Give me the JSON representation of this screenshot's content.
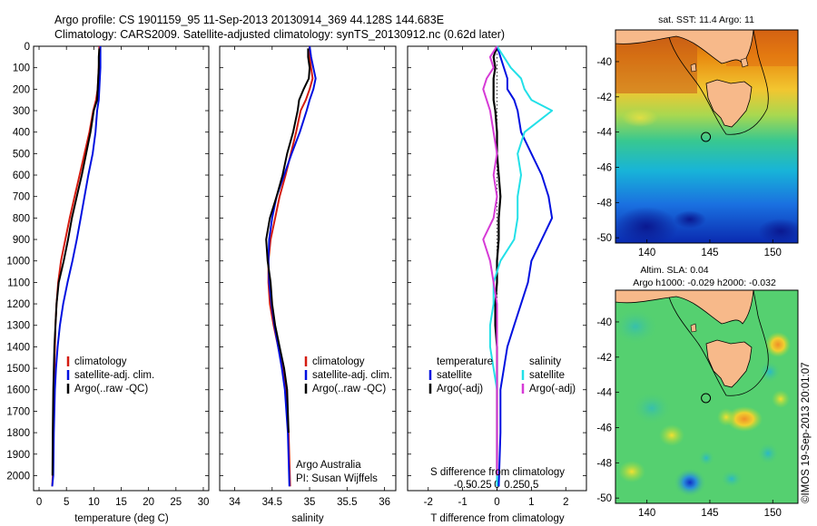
{
  "header": {
    "line1": "Argo profile: CS 1901159_95 11-Sep-2013 20130914_369 44.128S 144.683E",
    "line2": "Climatology: CARS2009. Satellite-adjusted climatology: synTS_20130912.nc (0.62d later)"
  },
  "colors": {
    "climatology": "#d41b0f",
    "satellite": "#0010e0",
    "argo": "#000000",
    "sat_salinity": "#22e0e8",
    "argo_salinity": "#d63ad6",
    "land": "#f7b98a"
  },
  "chart_data": [
    {
      "type": "line",
      "panel": "temperature",
      "xlabel": "temperature (deg C)",
      "ylabel": "",
      "xlim": [
        -1,
        31
      ],
      "ylim": [
        2070,
        0
      ],
      "xticks": [
        0,
        5,
        10,
        15,
        20,
        25,
        30
      ],
      "yticks": [
        0,
        100,
        200,
        300,
        400,
        500,
        600,
        700,
        800,
        900,
        1000,
        1100,
        1200,
        1300,
        1400,
        1500,
        1600,
        1700,
        1800,
        1900,
        2000
      ],
      "legend": [
        "climatology",
        "satellite-adj. clim.",
        "Argo(..raw -QC)"
      ],
      "series": [
        {
          "name": "climatology",
          "color_key": "climatology",
          "x": [
            11.0,
            11.0,
            10.9,
            10.8,
            10.7,
            10.4,
            9.9,
            9.2,
            8.3,
            7.4,
            6.5,
            5.6,
            4.8,
            4.0,
            3.5,
            3.2,
            3.0,
            2.9,
            2.8,
            2.7,
            2.6,
            2.5,
            2.4
          ],
          "y": [
            0,
            50,
            100,
            150,
            200,
            250,
            300,
            400,
            500,
            600,
            700,
            800,
            900,
            1000,
            1100,
            1200,
            1300,
            1400,
            1500,
            1600,
            1800,
            2000,
            2050
          ]
        },
        {
          "name": "satellite-adj. clim.",
          "color_key": "satellite",
          "x": [
            11.2,
            11.2,
            11.2,
            11.1,
            11.0,
            10.9,
            10.6,
            10.3,
            9.8,
            9.0,
            8.3,
            7.6,
            6.9,
            6.1,
            5.2,
            4.4,
            3.8,
            3.4,
            3.1,
            2.9,
            2.7,
            2.6,
            2.4
          ],
          "y": [
            0,
            50,
            100,
            150,
            200,
            250,
            300,
            400,
            500,
            600,
            700,
            800,
            900,
            1000,
            1100,
            1200,
            1300,
            1400,
            1500,
            1600,
            1800,
            2000,
            2050
          ]
        },
        {
          "name": "Argo(..raw -QC)",
          "color_key": "argo",
          "x": [
            11.0,
            10.9,
            10.9,
            10.8,
            10.7,
            10.6,
            10.0,
            9.4,
            8.6,
            7.8,
            6.9,
            6.0,
            5.3,
            4.5,
            3.6,
            3.2,
            3.0,
            2.8,
            2.7,
            2.6,
            2.5,
            2.45
          ],
          "y": [
            10,
            50,
            100,
            150,
            200,
            250,
            300,
            400,
            500,
            600,
            700,
            800,
            900,
            1000,
            1100,
            1200,
            1300,
            1400,
            1500,
            1600,
            1800,
            2000
          ]
        }
      ]
    },
    {
      "type": "line",
      "panel": "salinity",
      "xlabel": "salinity",
      "xlim": [
        33.8,
        36.15
      ],
      "ylim": [
        2070,
        0
      ],
      "xticks": [
        34,
        34.5,
        35,
        35.5,
        36
      ],
      "xticklabels": [
        "34",
        "34.5",
        "35",
        "35.5",
        "36"
      ],
      "legend": [
        "climatology",
        "satellite-adj. clim.",
        "Argo(..raw -QC)"
      ],
      "annotation": [
        "Argo Australia",
        "PI: Susan Wijffels"
      ],
      "series": [
        {
          "name": "climatology",
          "color_key": "climatology",
          "x": [
            35.0,
            35.0,
            35.02,
            35.04,
            35.0,
            34.95,
            34.88,
            34.82,
            34.75,
            34.68,
            34.6,
            34.54,
            34.48,
            34.45,
            34.45,
            34.47,
            34.52,
            34.58,
            34.64,
            34.68,
            34.72,
            34.74
          ],
          "y": [
            0,
            50,
            100,
            150,
            200,
            250,
            300,
            400,
            500,
            600,
            700,
            800,
            900,
            1000,
            1100,
            1200,
            1300,
            1400,
            1500,
            1600,
            1800,
            2050
          ]
        },
        {
          "name": "satellite-adj. clim.",
          "color_key": "satellite",
          "x": [
            35.0,
            35.02,
            35.05,
            35.08,
            35.05,
            35.0,
            34.96,
            34.87,
            34.76,
            34.66,
            34.56,
            34.5,
            34.46,
            34.45,
            34.46,
            34.49,
            34.53,
            34.58,
            34.63,
            34.67,
            34.71,
            34.73
          ],
          "y": [
            0,
            50,
            100,
            150,
            200,
            250,
            300,
            400,
            500,
            600,
            700,
            800,
            900,
            1000,
            1100,
            1200,
            1300,
            1400,
            1500,
            1600,
            1800,
            2050
          ]
        },
        {
          "name": "Argo(..raw -QC)",
          "color_key": "argo",
          "x": [
            34.98,
            34.98,
            35.0,
            34.99,
            34.92,
            34.86,
            34.84,
            34.78,
            34.7,
            34.64,
            34.56,
            34.47,
            34.42,
            34.44,
            34.48,
            34.5,
            34.54,
            34.6,
            34.66,
            34.7,
            34.72
          ],
          "y": [
            10,
            50,
            100,
            150,
            200,
            250,
            300,
            400,
            500,
            600,
            700,
            800,
            900,
            1000,
            1100,
            1200,
            1300,
            1400,
            1500,
            1600,
            1800
          ]
        }
      ]
    },
    {
      "type": "line",
      "panel": "difference",
      "xlabel": "T difference from climatology",
      "top_axis_label": "S difference from climatology",
      "xlim": [
        -2.6,
        2.6
      ],
      "ylim": [
        2070,
        0
      ],
      "xticks": [
        -2,
        -1,
        0,
        1,
        2
      ],
      "xticklabels": [
        "-2",
        "-1",
        "0",
        "1",
        "2"
      ],
      "s_ticks": [
        -0.5,
        -0.25,
        0,
        0.25,
        0.5
      ],
      "s_ticklabels": [
        "-0.5",
        "-0.25",
        "0",
        "0.25",
        "0.5"
      ],
      "legend_temperature_title": "temperature",
      "legend_salinity_title": "salinity",
      "legend_temperature": [
        "satellite",
        "Argo(-adj)"
      ],
      "legend_salinity": [
        "satellite",
        "Argo(-adj)"
      ],
      "series": [
        {
          "name": "temperature satellite",
          "color_key": "satellite",
          "x": [
            0.0,
            0.1,
            0.2,
            0.3,
            0.3,
            0.5,
            0.6,
            0.7,
            1.0,
            1.3,
            1.5,
            1.6,
            1.3,
            1.0,
            0.9,
            0.7,
            0.5,
            0.3,
            0.2,
            0.1,
            0.1,
            0.05
          ],
          "y": [
            0,
            50,
            100,
            150,
            200,
            250,
            300,
            400,
            500,
            600,
            700,
            800,
            900,
            1000,
            1100,
            1200,
            1300,
            1400,
            1500,
            1600,
            1800,
            2050
          ]
        },
        {
          "name": "temperature Argo(-adj)",
          "color_key": "argo",
          "x": [
            0.0,
            -0.1,
            -0.05,
            -0.1,
            -0.1,
            -0.1,
            -0.05,
            0.0,
            0.0,
            0.05,
            0.1,
            0.05,
            0.05,
            0.0,
            0.0,
            -0.05,
            -0.05,
            0.0,
            0.0,
            0.0,
            0.0
          ],
          "y": [
            0,
            50,
            100,
            150,
            200,
            250,
            300,
            400,
            500,
            600,
            700,
            800,
            900,
            1000,
            1100,
            1200,
            1300,
            1400,
            1500,
            1600,
            2000
          ]
        },
        {
          "name": "salinity satellite",
          "color_key": "sat_salinity",
          "x": [
            0.0,
            0.1,
            0.2,
            0.35,
            0.4,
            0.5,
            0.8,
            0.4,
            0.3,
            0.35,
            0.3,
            0.3,
            0.25,
            0.05,
            -0.05,
            -0.05,
            -0.1,
            -0.1,
            -0.05,
            0.0,
            0.0
          ],
          "y": [
            0,
            50,
            100,
            150,
            200,
            250,
            300,
            400,
            500,
            600,
            700,
            800,
            900,
            1000,
            1100,
            1200,
            1300,
            1400,
            1500,
            1600,
            2050
          ]
        },
        {
          "name": "salinity Argo(-adj)",
          "color_key": "argo_salinity",
          "x": [
            0.0,
            -0.1,
            -0.05,
            -0.15,
            -0.2,
            -0.15,
            -0.1,
            -0.05,
            0.0,
            -0.05,
            0.0,
            -0.05,
            -0.2,
            -0.1,
            -0.05,
            0.0,
            0.0,
            0.0,
            0.0,
            0.0
          ],
          "y": [
            0,
            50,
            100,
            150,
            200,
            250,
            300,
            400,
            500,
            600,
            700,
            800,
            900,
            1000,
            1100,
            1200,
            1300,
            1400,
            1600,
            2000
          ]
        }
      ]
    },
    {
      "type": "heatmap",
      "panel": "sst_map",
      "title": "sat. SST: 11.4 Argo: 11",
      "xlim": [
        137.5,
        152
      ],
      "ylim": [
        -50.3,
        -38.2
      ],
      "xticks": [
        140,
        145,
        150
      ],
      "yticks": [
        -40,
        -42,
        -44,
        -46,
        -48,
        -50
      ],
      "argo_position": {
        "lon": 144.683,
        "lat": -44.128
      }
    },
    {
      "type": "heatmap",
      "panel": "sla_map",
      "title": "Altim. SLA: 0.04",
      "subtitle": "Argo h1000: -0.029 h2000: -0.032",
      "xlim": [
        137.5,
        152
      ],
      "ylim": [
        -50.3,
        -38.2
      ],
      "xticks": [
        140,
        145,
        150
      ],
      "yticks": [
        -40,
        -42,
        -44,
        -46,
        -48,
        -50
      ],
      "argo_position": {
        "lon": 144.683,
        "lat": -44.128
      }
    }
  ],
  "credit": "©IMOS 19-Sep-2013 20:01:07"
}
